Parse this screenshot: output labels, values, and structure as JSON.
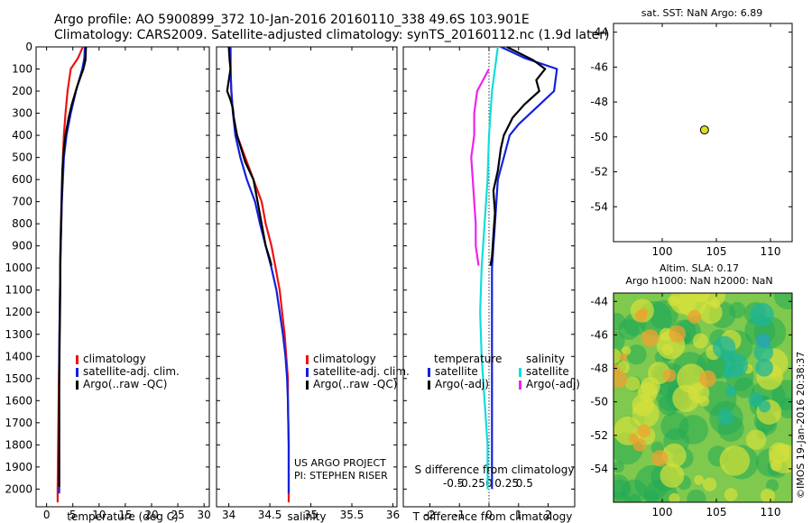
{
  "title_line1": "Argo profile: AO 5900899_372 10-Jan-2016 20160110_338 49.6S 103.901E",
  "title_line2": "Climatology: CARS2009. Satellite-adjusted climatology: synTS_20160112.nc (1.9d later)",
  "colors": {
    "climatology": "#ee1111",
    "satellite": "#1122dd",
    "argo": "#000000",
    "sat_salinity": "#11dddd",
    "argo_salinity": "#ee22ee",
    "marker": "#dddd22"
  },
  "chart_data": [
    {
      "type": "line",
      "name": "temperature-profile",
      "xlabel": "temperature (deg C)",
      "xlim": [
        -2,
        31
      ],
      "ylim": [
        2080,
        0
      ],
      "xticks": [
        0,
        5,
        10,
        15,
        20,
        25,
        30
      ],
      "yticks": [
        0,
        100,
        200,
        300,
        400,
        500,
        600,
        700,
        800,
        900,
        1000,
        1100,
        1200,
        1300,
        1400,
        1500,
        1600,
        1700,
        1800,
        1900,
        2000
      ],
      "legend": [
        "climatology",
        "satellite-adj. clim.",
        "Argo(..raw -QC)"
      ],
      "series": [
        {
          "name": "climatology",
          "color": "climatology",
          "points": [
            [
              6.9,
              0
            ],
            [
              6.0,
              50
            ],
            [
              4.6,
              100
            ],
            [
              4.0,
              200
            ],
            [
              3.6,
              300
            ],
            [
              3.3,
              400
            ],
            [
              3.1,
              500
            ],
            [
              3.0,
              600
            ],
            [
              2.9,
              700
            ],
            [
              2.8,
              800
            ],
            [
              2.7,
              900
            ],
            [
              2.6,
              1000
            ],
            [
              2.5,
              1200
            ],
            [
              2.4,
              1400
            ],
            [
              2.3,
              1600
            ],
            [
              2.2,
              1800
            ],
            [
              2.1,
              2000
            ],
            [
              2.1,
              2060
            ]
          ]
        },
        {
          "name": "satellite-adj. clim.",
          "color": "satellite",
          "points": [
            [
              7.3,
              0
            ],
            [
              7.2,
              50
            ],
            [
              6.8,
              100
            ],
            [
              5.6,
              200
            ],
            [
              4.6,
              300
            ],
            [
              3.8,
              400
            ],
            [
              3.3,
              500
            ],
            [
              3.1,
              600
            ],
            [
              2.9,
              700
            ],
            [
              2.8,
              800
            ],
            [
              2.7,
              900
            ],
            [
              2.6,
              1000
            ],
            [
              2.5,
              1200
            ],
            [
              2.4,
              1400
            ],
            [
              2.4,
              1600
            ],
            [
              2.4,
              1800
            ],
            [
              2.4,
              2000
            ],
            [
              2.4,
              2020
            ]
          ]
        },
        {
          "name": "Argo(..raw -QC)",
          "color": "argo",
          "points": [
            [
              7.5,
              0
            ],
            [
              7.4,
              60
            ],
            [
              7.0,
              100
            ],
            [
              5.8,
              180
            ],
            [
              4.8,
              260
            ],
            [
              4.2,
              320
            ],
            [
              3.6,
              400
            ],
            [
              3.3,
              460
            ],
            [
              3.0,
              560
            ],
            [
              2.9,
              650
            ],
            [
              2.8,
              750
            ],
            [
              2.7,
              850
            ],
            [
              2.6,
              950
            ],
            [
              2.6,
              1100
            ],
            [
              2.5,
              1300
            ],
            [
              2.4,
              1500
            ],
            [
              2.4,
              1700
            ],
            [
              2.4,
              1900
            ],
            [
              2.4,
              1990
            ]
          ]
        }
      ]
    },
    {
      "type": "line",
      "name": "salinity-profile",
      "xlabel": "salinity",
      "xlim": [
        33.85,
        36.05
      ],
      "ylim": [
        2080,
        0
      ],
      "xticks": [
        34,
        34.5,
        35,
        35.5,
        36
      ],
      "legend": [
        "climatology",
        "satellite-adj. clim.",
        "Argo(..raw -QC)"
      ],
      "annotation": [
        "US ARGO PROJECT",
        "PI: STEPHEN RISER"
      ],
      "series": [
        {
          "name": "climatology",
          "color": "climatology",
          "points": [
            [
              34.02,
              0
            ],
            [
              34.02,
              100
            ],
            [
              34.03,
              200
            ],
            [
              34.05,
              300
            ],
            [
              34.1,
              400
            ],
            [
              34.2,
              500
            ],
            [
              34.3,
              600
            ],
            [
              34.4,
              700
            ],
            [
              34.45,
              800
            ],
            [
              34.52,
              900
            ],
            [
              34.57,
              1000
            ],
            [
              34.62,
              1100
            ],
            [
              34.65,
              1200
            ],
            [
              34.68,
              1300
            ],
            [
              34.7,
              1400
            ],
            [
              34.72,
              1500
            ],
            [
              34.72,
              1600
            ],
            [
              34.73,
              1800
            ],
            [
              34.73,
              2000
            ],
            [
              34.73,
              2060
            ]
          ]
        },
        {
          "name": "satellite-adj. clim.",
          "color": "satellite",
          "points": [
            [
              34.02,
              0
            ],
            [
              34.02,
              100
            ],
            [
              34.03,
              200
            ],
            [
              34.05,
              300
            ],
            [
              34.08,
              400
            ],
            [
              34.14,
              500
            ],
            [
              34.22,
              600
            ],
            [
              34.32,
              700
            ],
            [
              34.38,
              800
            ],
            [
              34.45,
              900
            ],
            [
              34.52,
              1000
            ],
            [
              34.58,
              1100
            ],
            [
              34.62,
              1200
            ],
            [
              34.66,
              1300
            ],
            [
              34.69,
              1400
            ],
            [
              34.71,
              1500
            ],
            [
              34.72,
              1600
            ],
            [
              34.73,
              1800
            ],
            [
              34.73,
              2000
            ],
            [
              34.73,
              2020
            ]
          ]
        },
        {
          "name": "Argo(..raw -QC)",
          "color": "argo",
          "points": [
            [
              34.0,
              0
            ],
            [
              34.01,
              60
            ],
            [
              34.02,
              100
            ],
            [
              34.0,
              150
            ],
            [
              33.98,
              200
            ],
            [
              34.02,
              240
            ],
            [
              34.05,
              280
            ],
            [
              34.06,
              320
            ],
            [
              34.1,
              400
            ],
            [
              34.15,
              460
            ],
            [
              34.2,
              520
            ],
            [
              34.3,
              600
            ],
            [
              34.35,
              700
            ],
            [
              34.4,
              800
            ],
            [
              34.45,
              900
            ],
            [
              34.5,
              960
            ],
            [
              34.52,
              990
            ]
          ]
        }
      ]
    },
    {
      "type": "line",
      "name": "difference-profile",
      "xlabel": "T difference from climatology",
      "xlabel_top": "S difference from climatology",
      "xlim": [
        -2.9,
        2.9
      ],
      "ylim": [
        2080,
        0
      ],
      "xticks": [
        -2,
        -1,
        0,
        1,
        2
      ],
      "xticks_s": [
        "-0.5",
        "-0.25",
        "0",
        "0.25",
        "0.5"
      ],
      "legend_headers": [
        "temperature",
        "salinity"
      ],
      "legend": [
        "satellite",
        "Argo(-adj)",
        "satellite",
        "Argo(-adj)"
      ],
      "series": [
        {
          "name": "temperature satellite",
          "color": "satellite",
          "points": [
            [
              0.4,
              0
            ],
            [
              1.2,
              50
            ],
            [
              2.3,
              100
            ],
            [
              2.2,
              200
            ],
            [
              1.8,
              250
            ],
            [
              1.4,
              300
            ],
            [
              1.0,
              350
            ],
            [
              0.7,
              400
            ],
            [
              0.5,
              500
            ],
            [
              0.3,
              600
            ],
            [
              0.25,
              700
            ],
            [
              0.2,
              800
            ],
            [
              0.15,
              900
            ],
            [
              0.1,
              1000
            ],
            [
              0.1,
              1200
            ],
            [
              0.1,
              1400
            ],
            [
              0.1,
              1600
            ],
            [
              0.1,
              1800
            ],
            [
              0.1,
              2000
            ]
          ]
        },
        {
          "name": "temperature Argo(-adj)",
          "color": "argo",
          "points": [
            [
              0.6,
              0
            ],
            [
              1.5,
              60
            ],
            [
              1.9,
              100
            ],
            [
              1.6,
              150
            ],
            [
              1.7,
              200
            ],
            [
              1.2,
              260
            ],
            [
              0.8,
              320
            ],
            [
              0.5,
              400
            ],
            [
              0.4,
              460
            ],
            [
              0.3,
              560
            ],
            [
              0.15,
              650
            ],
            [
              0.2,
              750
            ],
            [
              0.15,
              850
            ],
            [
              0.1,
              950
            ],
            [
              0.05,
              990
            ]
          ]
        },
        {
          "name": "salinity satellite",
          "color": "sat_salinity",
          "points": [
            [
              0.3,
              0
            ],
            [
              0.2,
              100
            ],
            [
              0.1,
              200
            ],
            [
              0.0,
              400
            ],
            [
              -0.05,
              600
            ],
            [
              -0.15,
              800
            ],
            [
              -0.25,
              1000
            ],
            [
              -0.3,
              1200
            ],
            [
              -0.25,
              1400
            ],
            [
              -0.15,
              1600
            ],
            [
              -0.05,
              1800
            ],
            [
              -0.05,
              2000
            ]
          ]
        },
        {
          "name": "salinity Argo(-adj)",
          "color": "argo_salinity",
          "points": [
            [
              0.0,
              100
            ],
            [
              -0.4,
              200
            ],
            [
              -0.5,
              300
            ],
            [
              -0.5,
              400
            ],
            [
              -0.6,
              500
            ],
            [
              -0.55,
              600
            ],
            [
              -0.5,
              700
            ],
            [
              -0.45,
              800
            ],
            [
              -0.45,
              900
            ],
            [
              -0.35,
              990
            ]
          ]
        }
      ]
    },
    {
      "type": "scatter",
      "name": "location-map",
      "title": "sat. SST: NaN Argo: 6.89",
      "xlim": [
        95.5,
        112
      ],
      "ylim": [
        -56,
        -43.5
      ],
      "xticks": [
        100,
        105,
        110
      ],
      "yticks": [
        -44,
        -46,
        -48,
        -50,
        -52,
        -54
      ],
      "points": [
        [
          103.901,
          -49.6
        ]
      ]
    },
    {
      "type": "heatmap",
      "name": "sla-map",
      "title_line1": "Altim. SLA: 0.17",
      "title_line2": "Argo h1000: NaN h2000: NaN",
      "xlim": [
        95.5,
        112
      ],
      "ylim": [
        -56,
        -43.5
      ],
      "xticks": [
        100,
        105,
        110
      ],
      "yticks": [
        -44,
        -46,
        -48,
        -50,
        -52,
        -54
      ],
      "side_label": "©IMOS 19-Jan-2016 20:38:37"
    }
  ]
}
